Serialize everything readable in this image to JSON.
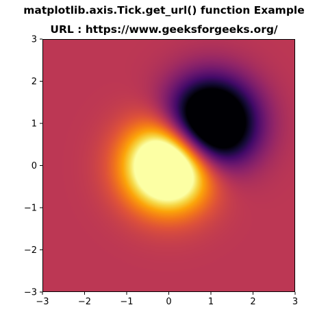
{
  "chart_data": {
    "type": "heatmap",
    "title": "matplotlib.axis.Tick.get_url() function Example",
    "subtitle": "URL : https://www.geeksforgeeks.org/",
    "xlabel": "",
    "ylabel": "",
    "xlim": [
      -3,
      3
    ],
    "ylim": [
      -3,
      3
    ],
    "x_ticks": [
      -3,
      -2,
      -1,
      0,
      1,
      2,
      3
    ],
    "y_ticks": [
      -3,
      -2,
      -1,
      0,
      1,
      2,
      3
    ],
    "x_tick_labels": [
      "−3",
      "−2",
      "−1",
      "0",
      "1",
      "2",
      "3"
    ],
    "y_tick_labels": [
      "−3",
      "−2",
      "−1",
      "0",
      "1",
      "2",
      "3"
    ],
    "colormap": "inferno",
    "grid": false,
    "function": "Z = (exp(-x^2 - y^2) - exp(-(x-1)^2 - (y-1)^2)) * 2",
    "z_range": [
      -1,
      1
    ],
    "features": [
      {
        "kind": "maximum",
        "x": -0.16,
        "y": -0.05
      },
      {
        "kind": "minimum",
        "x": 1.1,
        "y": 1.1
      }
    ]
  }
}
